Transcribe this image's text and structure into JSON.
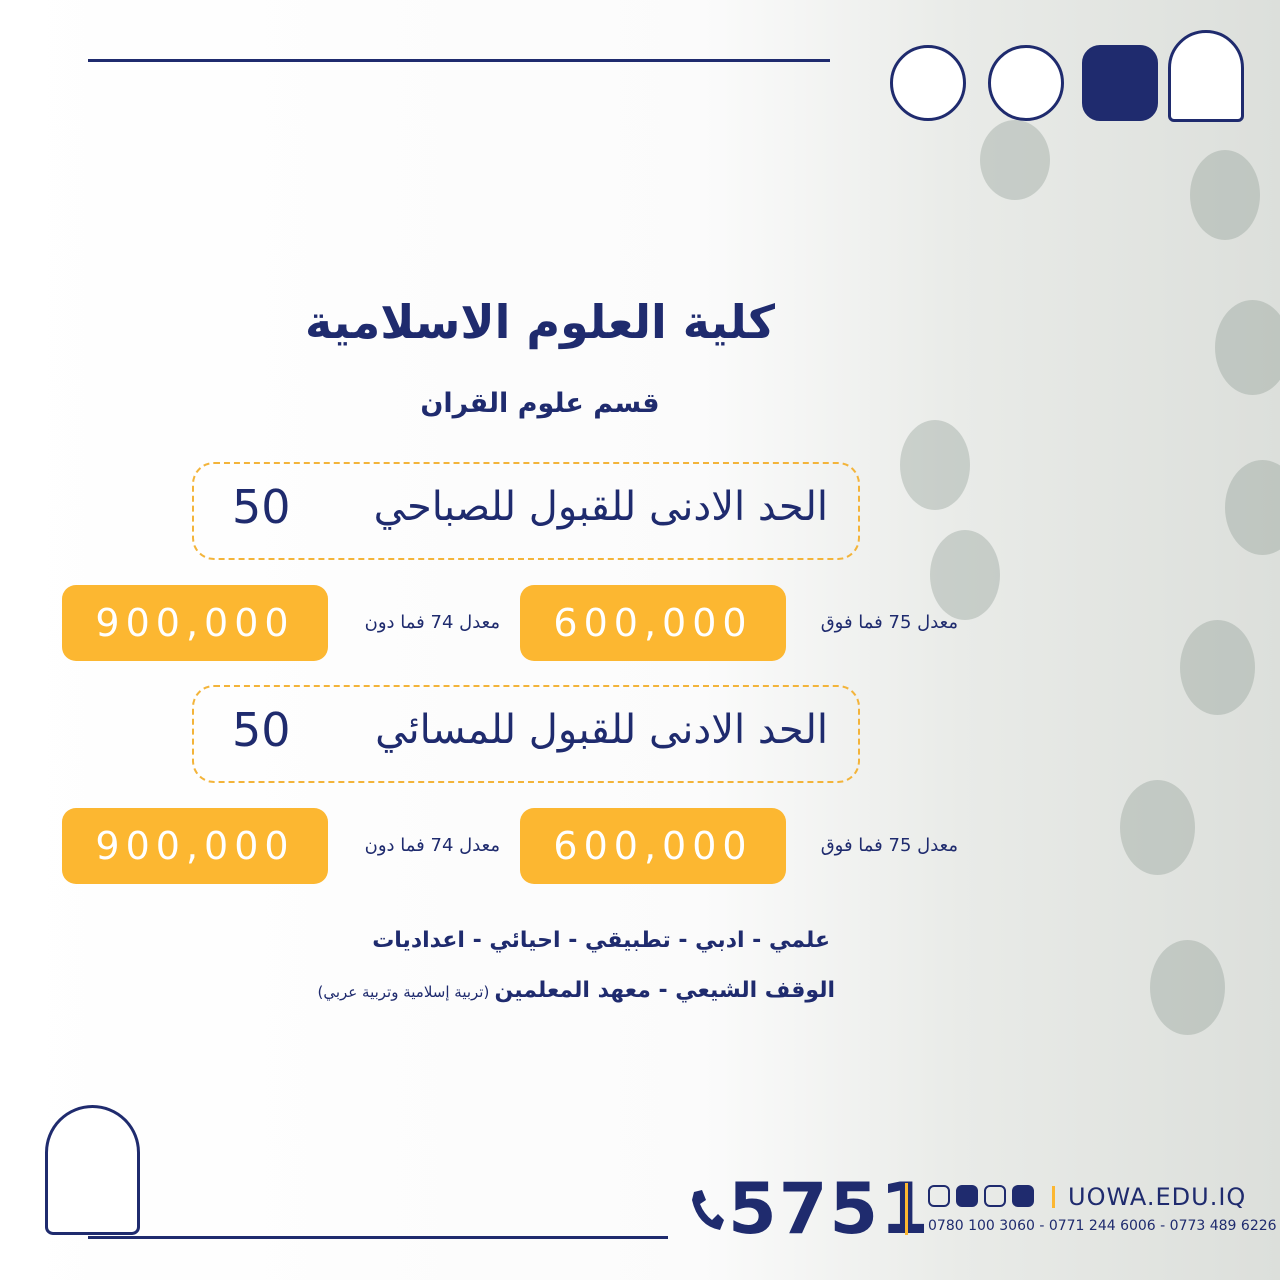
{
  "header": {
    "title": "كلية العلوم الاسلامية",
    "subtitle": "قسم علوم القران"
  },
  "sections": [
    {
      "heading": "الحد الادنى للقبول للصباحي",
      "minimum": "50",
      "fees": [
        {
          "label": "معدل 75 فما فوق",
          "amount": "600,000"
        },
        {
          "label": "معدل 74 فما دون",
          "amount": "900,000"
        }
      ]
    },
    {
      "heading": "الحد الادنى للقبول للمسائي",
      "minimum": "50",
      "fees": [
        {
          "label": "معدل 75 فما فوق",
          "amount": "600,000"
        },
        {
          "label": "معدل 74 فما دون",
          "amount": "900,000"
        }
      ]
    }
  ],
  "eligibility": {
    "branches": "علمي - ادبي - تطبيقي - احيائي - اعداديات",
    "others": "الوقف الشيعي - معهد المعلمين",
    "others_note": "(تربية إسلامية وتربية عربي)"
  },
  "footer": {
    "hotline": "5751",
    "phones": "0780 100 3060 - 0771 244 6006 - 0773 489 6226",
    "website": "UOWA.EDU.IQ"
  }
}
